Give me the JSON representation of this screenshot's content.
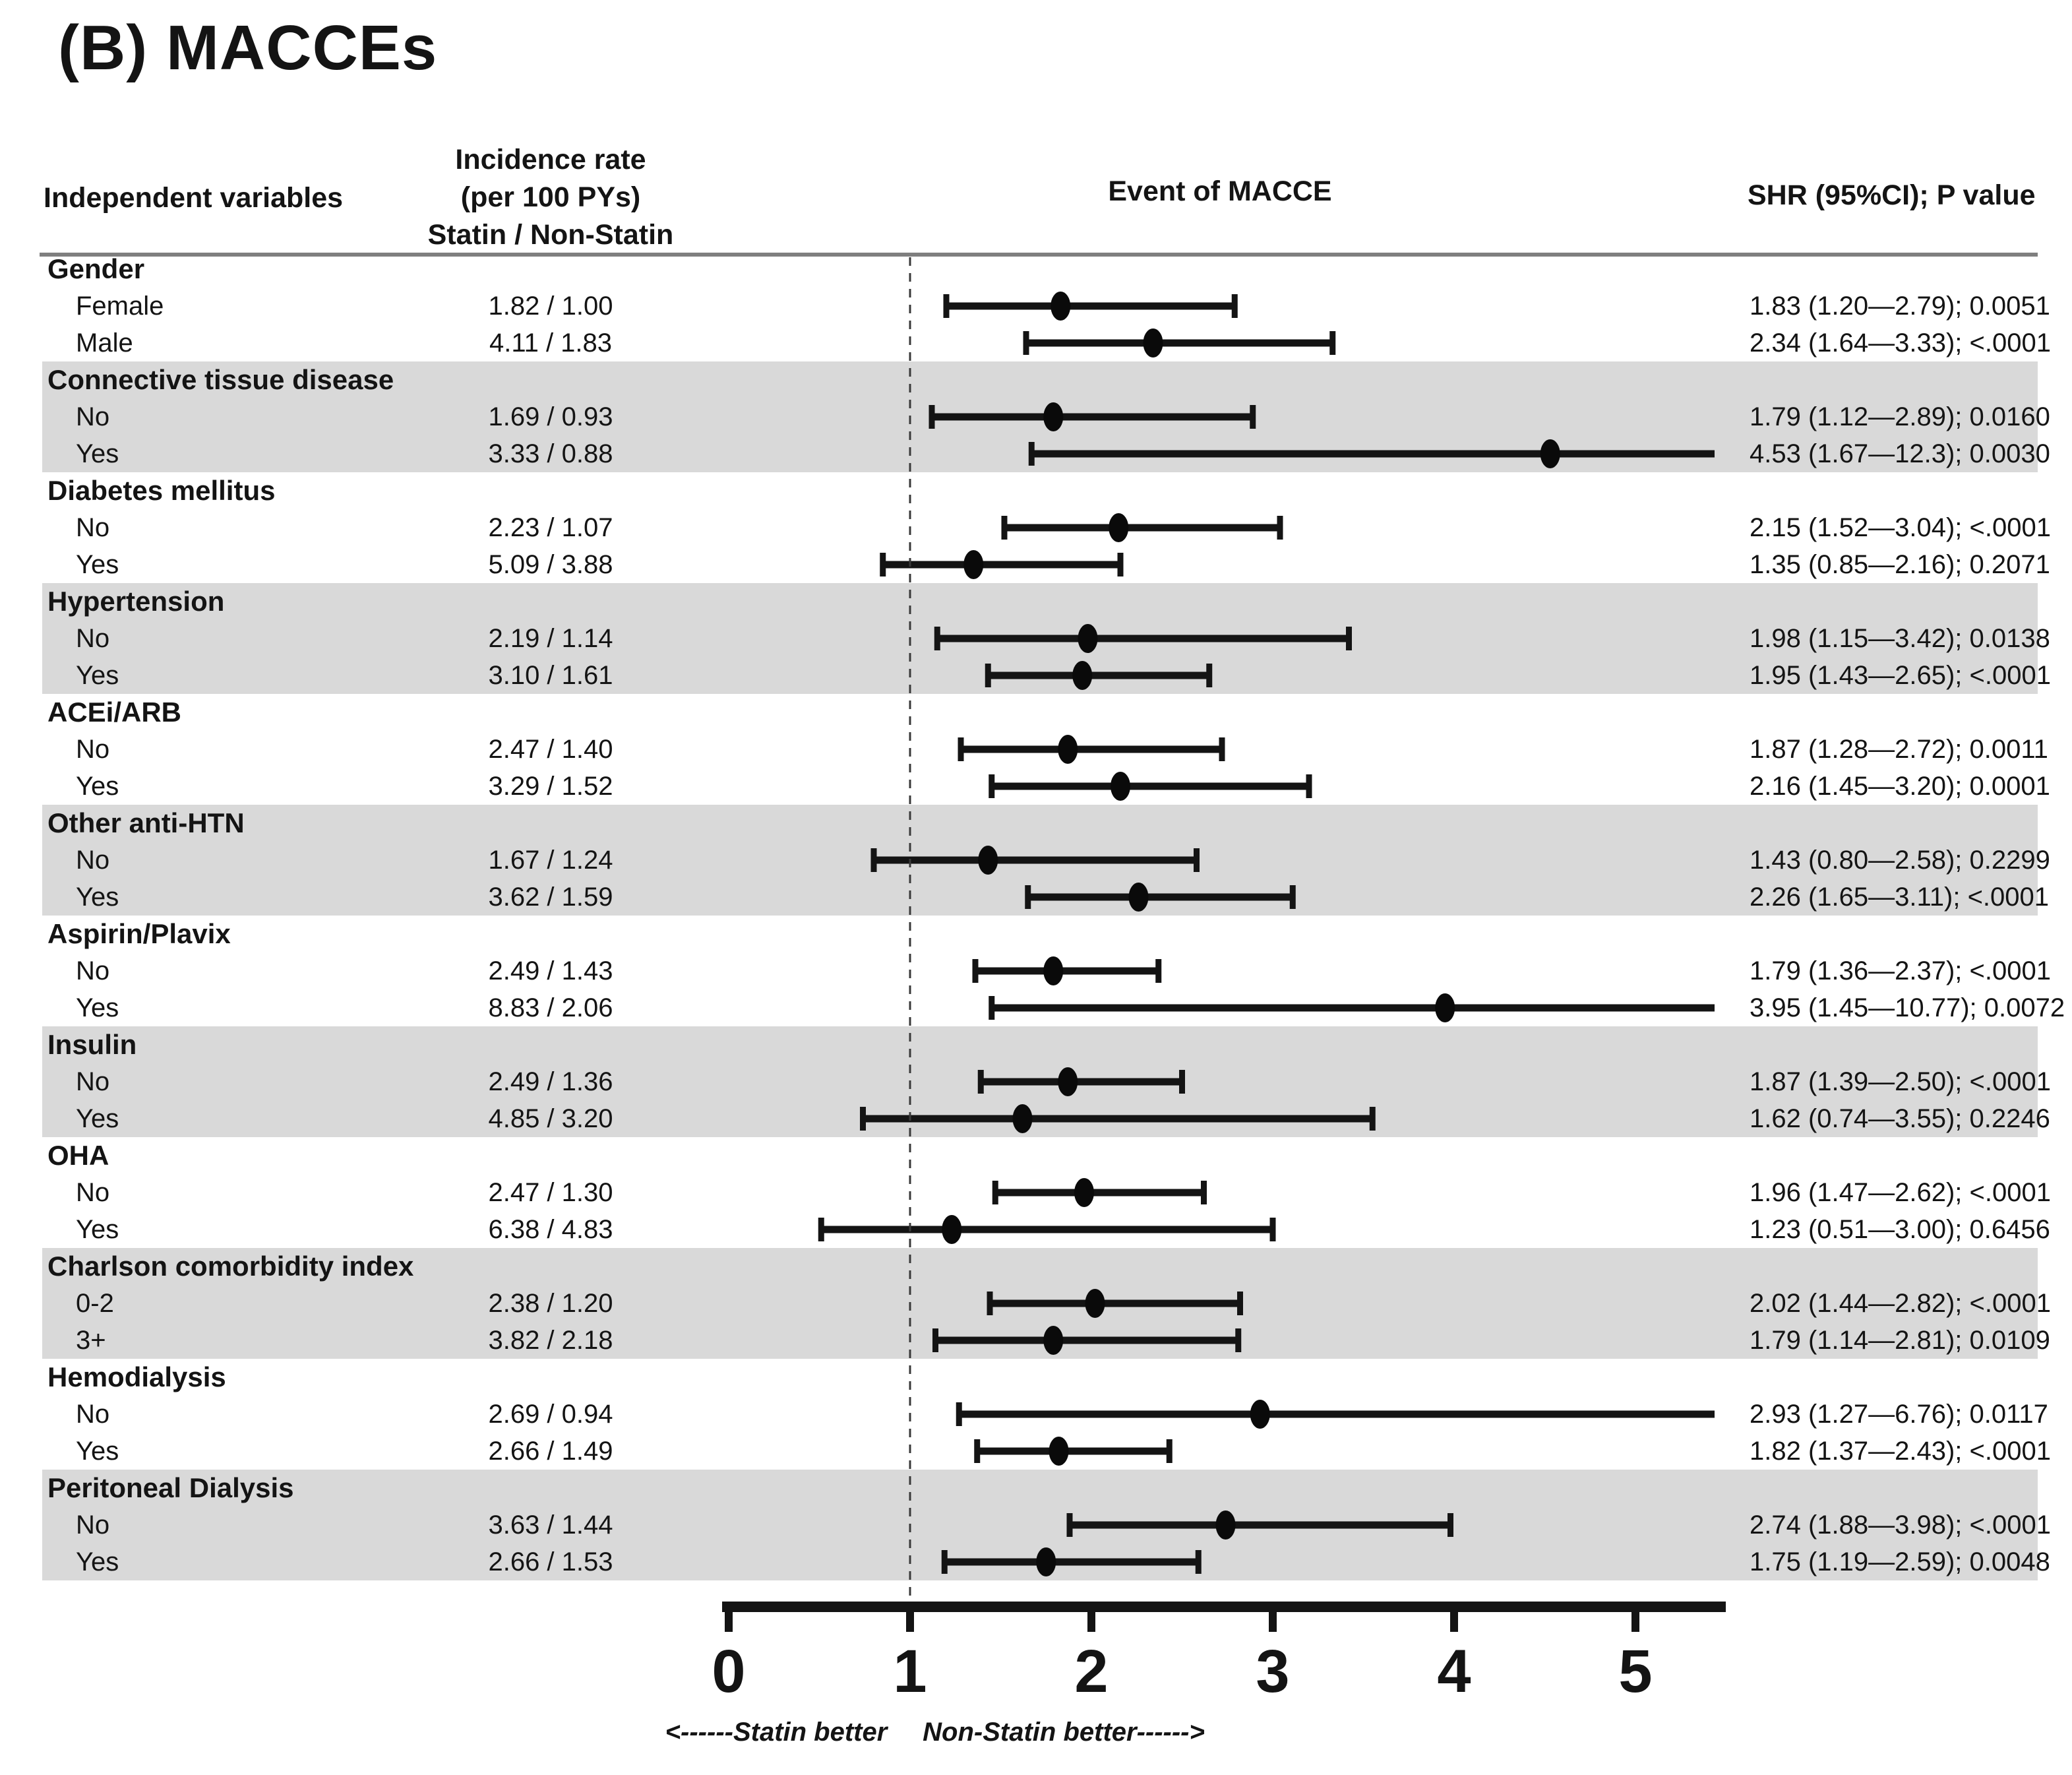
{
  "title": "(B) MACCEs",
  "columns": {
    "variables": "Independent variables",
    "incidence_line1": "Incidence rate",
    "incidence_line2": "(per 100 PYs)",
    "incidence_line3": "Statin / Non-Statin",
    "plot": "Event of MACCE",
    "shr": "SHR (95%CI); P value"
  },
  "axis": {
    "tick_labels": [
      "0",
      "1",
      "2",
      "3",
      "4",
      "5"
    ],
    "tick_values": [
      0,
      1,
      2,
      3,
      4,
      5
    ],
    "left_label": "<------Statin better",
    "right_label": "Non-Statin better------>",
    "reference_value": 1,
    "xlim": [
      0,
      5.5
    ]
  },
  "colors": {
    "ink": "#141414",
    "marker": "#0a0a0a",
    "band": "#d9d9d9",
    "rule": "#7f7f7f",
    "reference_line": "#3a3a3a"
  },
  "chart_data": {
    "type": "scatter",
    "subtype": "forest-plot",
    "title": "(B) MACCEs",
    "x_header": "Event of MACCE",
    "xlabel_left": "<------Statin better",
    "xlabel_right": "Non-Statin better------>",
    "xlim": [
      0,
      5.5
    ],
    "x_ticks": [
      0,
      1,
      2,
      3,
      4,
      5
    ],
    "reference_line": 1,
    "legend_position": "none",
    "grid": false,
    "groups": [
      {
        "name": "Gender",
        "shaded": false,
        "rows": [
          {
            "label": "Female",
            "incidence": "1.82 / 1.00",
            "est": 1.83,
            "lo": 1.2,
            "hi": 2.79,
            "shr": "1.83 (1.20—2.79); 0.0051"
          },
          {
            "label": "Male",
            "incidence": "4.11 / 1.83",
            "est": 2.34,
            "lo": 1.64,
            "hi": 3.33,
            "shr": "2.34 (1.64—3.33); <.0001"
          }
        ]
      },
      {
        "name": "Connective tissue disease",
        "shaded": true,
        "rows": [
          {
            "label": "No",
            "incidence": "1.69 / 0.93",
            "est": 1.79,
            "lo": 1.12,
            "hi": 2.89,
            "shr": "1.79 (1.12—2.89); 0.0160"
          },
          {
            "label": "Yes",
            "incidence": "3.33 / 0.88",
            "est": 4.53,
            "lo": 1.67,
            "hi": 12.3,
            "shr": "4.53 (1.67—12.3); 0.0030"
          }
        ]
      },
      {
        "name": "Diabetes mellitus",
        "shaded": false,
        "rows": [
          {
            "label": "No",
            "incidence": "2.23 / 1.07",
            "est": 2.15,
            "lo": 1.52,
            "hi": 3.04,
            "shr": "2.15 (1.52—3.04); <.0001"
          },
          {
            "label": "Yes",
            "incidence": "5.09 / 3.88",
            "est": 1.35,
            "lo": 0.85,
            "hi": 2.16,
            "shr": "1.35 (0.85—2.16); 0.2071"
          }
        ]
      },
      {
        "name": "Hypertension",
        "shaded": true,
        "rows": [
          {
            "label": "No",
            "incidence": "2.19 / 1.14",
            "est": 1.98,
            "lo": 1.15,
            "hi": 3.42,
            "shr": "1.98 (1.15—3.42); 0.0138"
          },
          {
            "label": "Yes",
            "incidence": "3.10 / 1.61",
            "est": 1.95,
            "lo": 1.43,
            "hi": 2.65,
            "shr": "1.95 (1.43—2.65); <.0001"
          }
        ]
      },
      {
        "name": "ACEi/ARB",
        "shaded": false,
        "rows": [
          {
            "label": "No",
            "incidence": "2.47 / 1.40",
            "est": 1.87,
            "lo": 1.28,
            "hi": 2.72,
            "shr": "1.87 (1.28—2.72); 0.0011"
          },
          {
            "label": "Yes",
            "incidence": "3.29 / 1.52",
            "est": 2.16,
            "lo": 1.45,
            "hi": 3.2,
            "shr": "2.16 (1.45—3.20); 0.0001"
          }
        ]
      },
      {
        "name": "Other anti-HTN",
        "shaded": true,
        "rows": [
          {
            "label": "No",
            "incidence": "1.67 / 1.24",
            "est": 1.43,
            "lo": 0.8,
            "hi": 2.58,
            "shr": "1.43 (0.80—2.58); 0.2299"
          },
          {
            "label": "Yes",
            "incidence": "3.62 / 1.59",
            "est": 2.26,
            "lo": 1.65,
            "hi": 3.11,
            "shr": "2.26 (1.65—3.11); <.0001"
          }
        ]
      },
      {
        "name": "Aspirin/Plavix",
        "shaded": false,
        "rows": [
          {
            "label": "No",
            "incidence": "2.49 / 1.43",
            "est": 1.79,
            "lo": 1.36,
            "hi": 2.37,
            "shr": "1.79 (1.36—2.37); <.0001"
          },
          {
            "label": "Yes",
            "incidence": "8.83 / 2.06",
            "est": 3.95,
            "lo": 1.45,
            "hi": 10.77,
            "shr": "3.95 (1.45—10.77); 0.0072"
          }
        ]
      },
      {
        "name": "Insulin",
        "shaded": true,
        "rows": [
          {
            "label": "No",
            "incidence": "2.49 / 1.36",
            "est": 1.87,
            "lo": 1.39,
            "hi": 2.5,
            "shr": "1.87 (1.39—2.50); <.0001"
          },
          {
            "label": "Yes",
            "incidence": "4.85 / 3.20",
            "est": 1.62,
            "lo": 0.74,
            "hi": 3.55,
            "shr": "1.62 (0.74—3.55); 0.2246"
          }
        ]
      },
      {
        "name": "OHA",
        "shaded": false,
        "rows": [
          {
            "label": "No",
            "incidence": "2.47 / 1.30",
            "est": 1.96,
            "lo": 1.47,
            "hi": 2.62,
            "shr": "1.96 (1.47—2.62); <.0001"
          },
          {
            "label": "Yes",
            "incidence": "6.38 / 4.83",
            "est": 1.23,
            "lo": 0.51,
            "hi": 3.0,
            "shr": "1.23 (0.51—3.00); 0.6456"
          }
        ]
      },
      {
        "name": "Charlson comorbidity index",
        "shaded": true,
        "rows": [
          {
            "label": "0-2",
            "incidence": "2.38 / 1.20",
            "est": 2.02,
            "lo": 1.44,
            "hi": 2.82,
            "shr": "2.02 (1.44—2.82); <.0001"
          },
          {
            "label": "3+",
            "incidence": "3.82 / 2.18",
            "est": 1.79,
            "lo": 1.14,
            "hi": 2.81,
            "shr": "1.79 (1.14—2.81); 0.0109"
          }
        ]
      },
      {
        "name": "Hemodialysis",
        "shaded": false,
        "rows": [
          {
            "label": "No",
            "incidence": "2.69 / 0.94",
            "est": 2.93,
            "lo": 1.27,
            "hi": 6.76,
            "shr": "2.93 (1.27—6.76); 0.0117"
          },
          {
            "label": "Yes",
            "incidence": "2.66 / 1.49",
            "est": 1.82,
            "lo": 1.37,
            "hi": 2.43,
            "shr": "1.82 (1.37—2.43); <.0001"
          }
        ]
      },
      {
        "name": "Peritoneal Dialysis",
        "shaded": true,
        "rows": [
          {
            "label": "No",
            "incidence": "3.63 / 1.44",
            "est": 2.74,
            "lo": 1.88,
            "hi": 3.98,
            "shr": "2.74 (1.88—3.98); <.0001"
          },
          {
            "label": "Yes",
            "incidence": "2.66 / 1.53",
            "est": 1.75,
            "lo": 1.19,
            "hi": 2.59,
            "shr": "1.75 (1.19—2.59); 0.0048"
          }
        ]
      }
    ]
  }
}
